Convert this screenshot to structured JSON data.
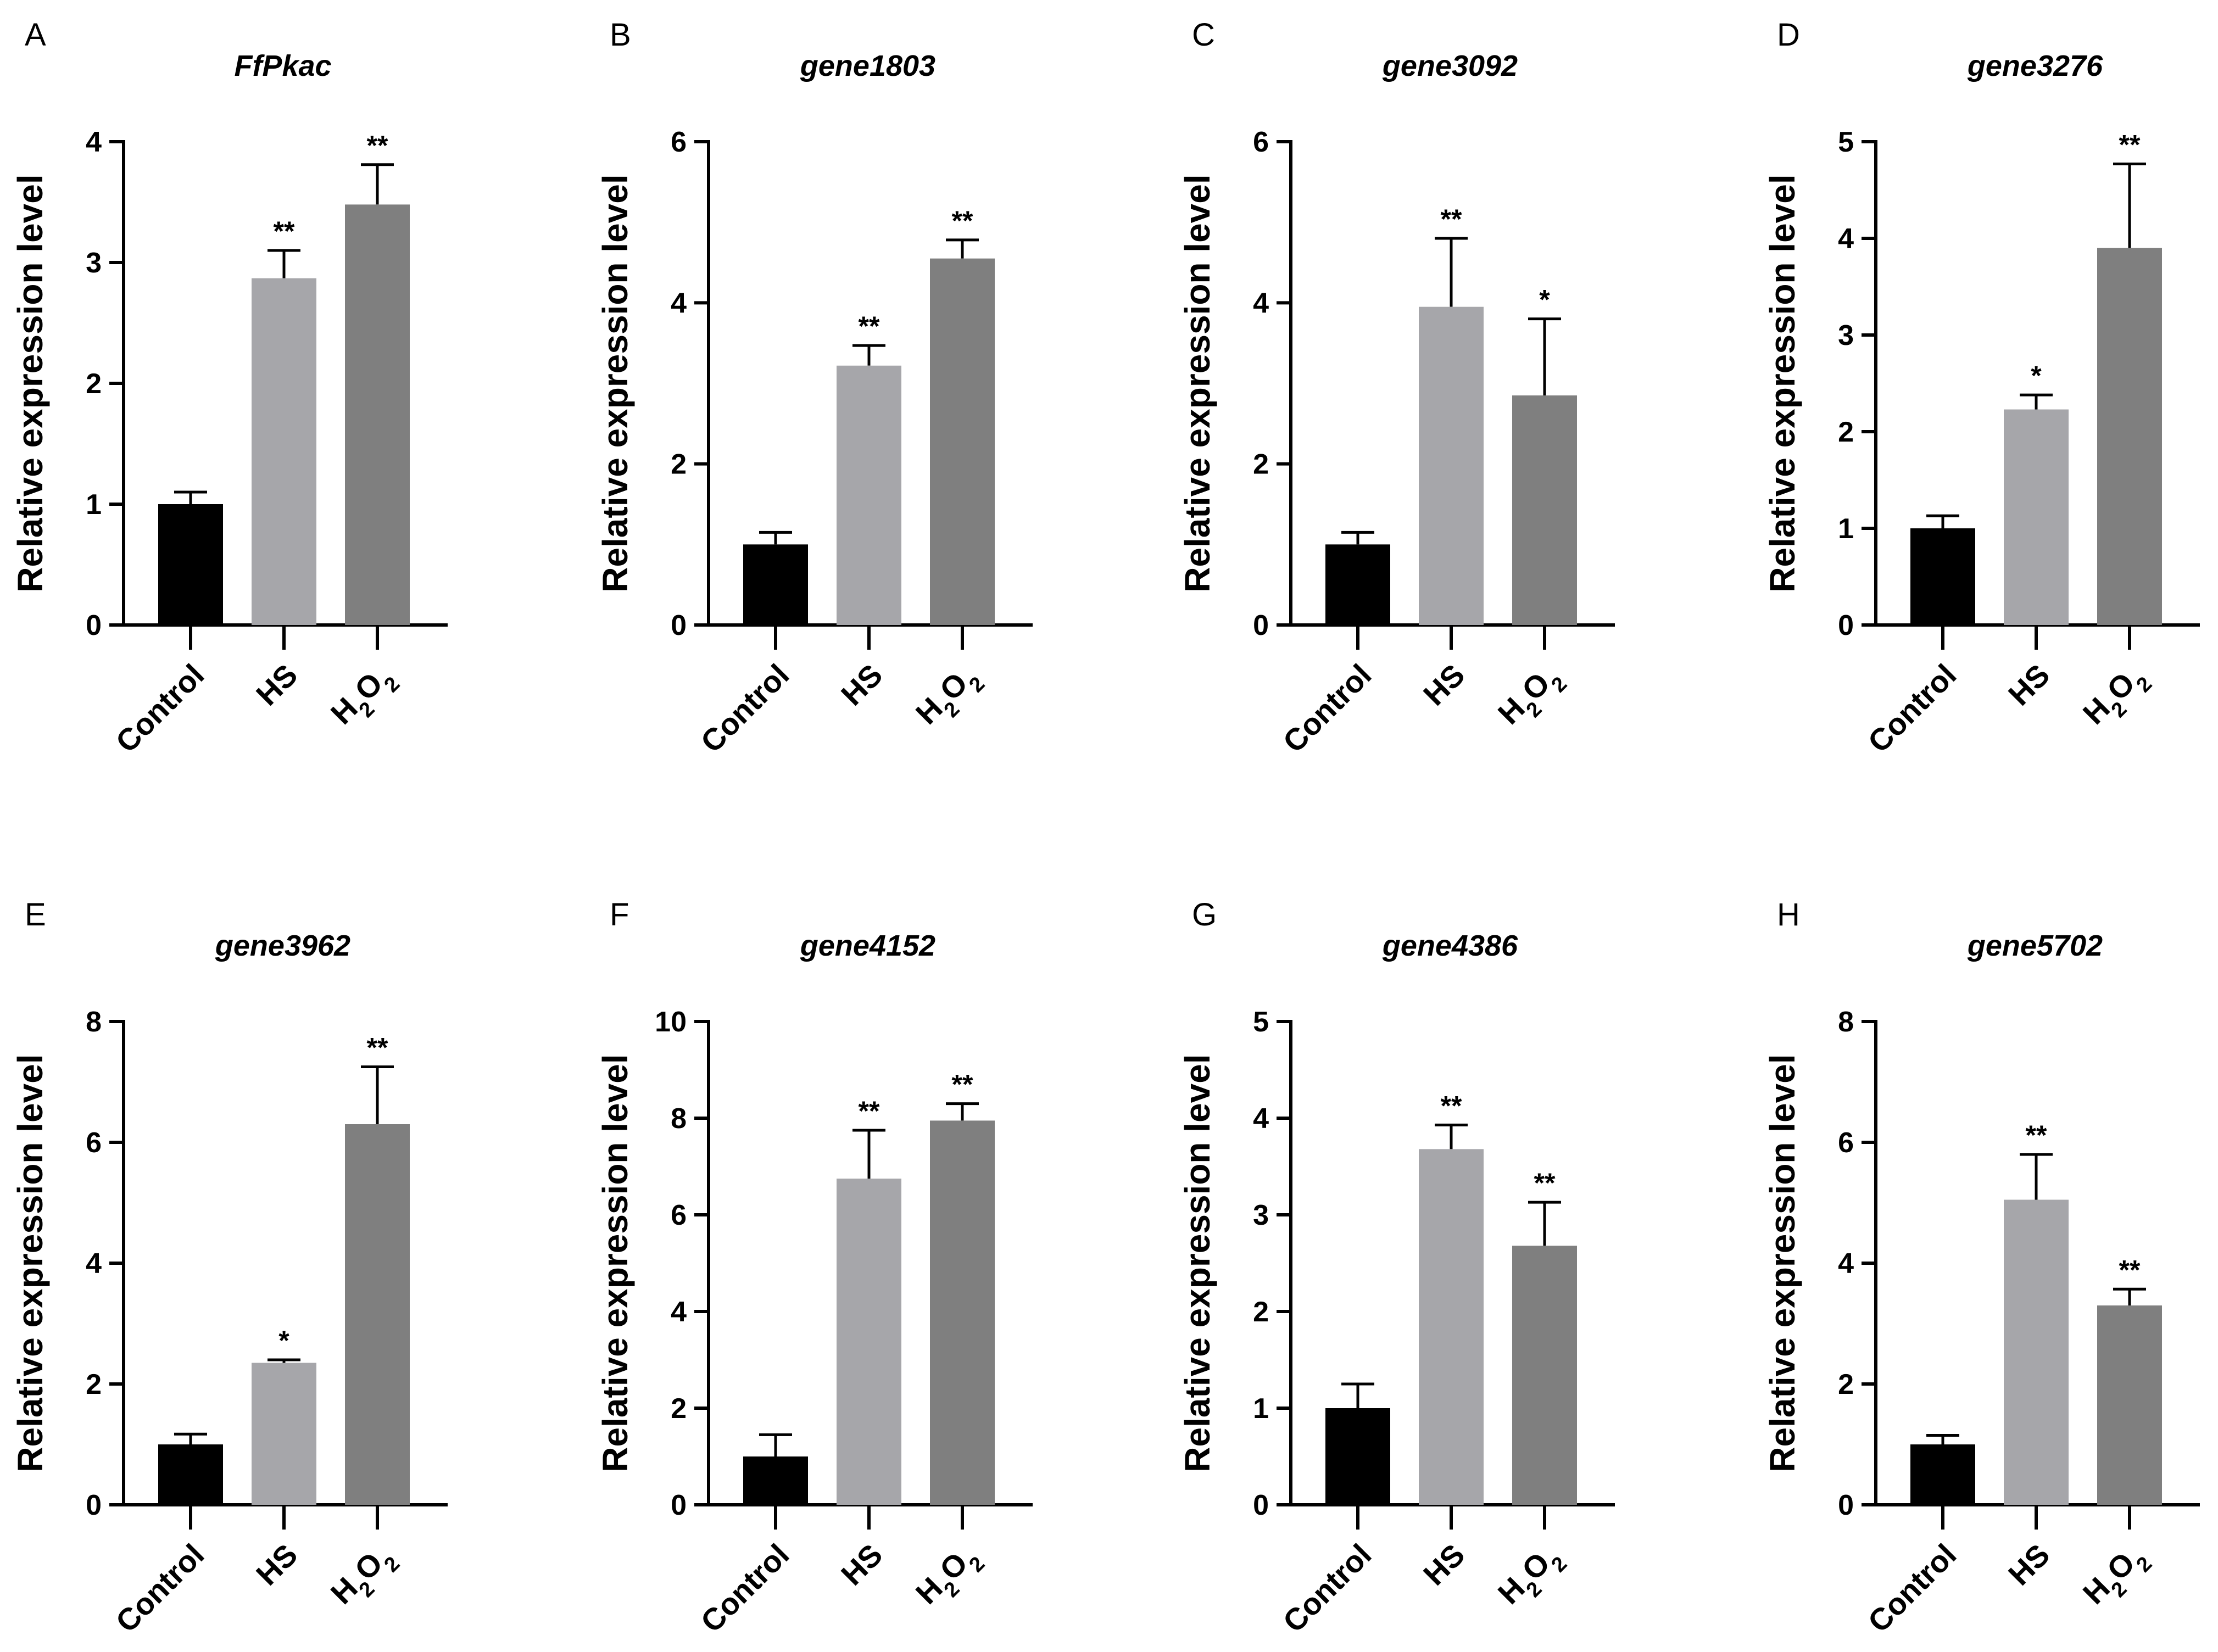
{
  "figure": {
    "categories": [
      "Control",
      "HS",
      "H2O2"
    ],
    "bar_colors": [
      "#000000",
      "#a6a6aa",
      "#7f7f7f"
    ],
    "ylabel": "Relative expression level"
  },
  "chart_data": [
    {
      "panel": "A",
      "title": "FfPkac",
      "type": "bar",
      "categories": [
        "Control",
        "HS",
        "H2O2"
      ],
      "values": [
        1.0,
        2.87,
        3.48
      ],
      "errors": [
        0.1,
        0.23,
        0.33
      ],
      "significance": [
        "",
        "**",
        "**"
      ],
      "ylabel": "Relative expression level",
      "ylim": [
        0,
        4
      ],
      "yticks": [
        0,
        1,
        2,
        3,
        4
      ]
    },
    {
      "panel": "B",
      "title": "gene1803",
      "type": "bar",
      "categories": [
        "Control",
        "HS",
        "H2O2"
      ],
      "values": [
        1.0,
        3.22,
        4.55
      ],
      "errors": [
        0.15,
        0.25,
        0.23
      ],
      "significance": [
        "",
        "**",
        "**"
      ],
      "ylabel": "Relative expression level",
      "ylim": [
        0,
        6
      ],
      "yticks": [
        0,
        2,
        4,
        6
      ]
    },
    {
      "panel": "C",
      "title": "gene3092",
      "type": "bar",
      "categories": [
        "Control",
        "HS",
        "H2O2"
      ],
      "values": [
        1.0,
        3.95,
        2.85
      ],
      "errors": [
        0.15,
        0.85,
        0.95
      ],
      "significance": [
        "",
        "**",
        "*"
      ],
      "ylabel": "Relative expression level",
      "ylim": [
        0,
        6
      ],
      "yticks": [
        0,
        2,
        4,
        6
      ]
    },
    {
      "panel": "D",
      "title": "gene3276",
      "type": "bar",
      "categories": [
        "Control",
        "HS",
        "H2O2"
      ],
      "values": [
        1.0,
        2.23,
        3.9
      ],
      "errors": [
        0.13,
        0.15,
        0.87
      ],
      "significance": [
        "",
        "*",
        "**"
      ],
      "ylabel": "Relative expression level",
      "ylim": [
        0,
        5
      ],
      "yticks": [
        0,
        1,
        2,
        3,
        4,
        5
      ]
    },
    {
      "panel": "E",
      "title": "gene3962",
      "type": "bar",
      "categories": [
        "Control",
        "HS",
        "H2O2"
      ],
      "values": [
        1.0,
        2.35,
        6.3
      ],
      "errors": [
        0.17,
        0.05,
        0.95
      ],
      "significance": [
        "",
        "*",
        "**"
      ],
      "ylabel": "Relative expression level",
      "ylim": [
        0,
        8
      ],
      "yticks": [
        0,
        2,
        4,
        6,
        8
      ]
    },
    {
      "panel": "F",
      "title": "gene4152",
      "type": "bar",
      "categories": [
        "Control",
        "HS",
        "H2O2"
      ],
      "values": [
        1.0,
        6.75,
        7.95
      ],
      "errors": [
        0.45,
        1.0,
        0.35
      ],
      "significance": [
        "",
        "**",
        "**"
      ],
      "ylabel": "Relative expression level",
      "ylim": [
        0,
        10
      ],
      "yticks": [
        0,
        2,
        4,
        6,
        8,
        10
      ]
    },
    {
      "panel": "G",
      "title": "gene4386",
      "type": "bar",
      "categories": [
        "Control",
        "HS",
        "H2O2"
      ],
      "values": [
        1.0,
        3.68,
        2.68
      ],
      "errors": [
        0.25,
        0.25,
        0.45
      ],
      "significance": [
        "",
        "**",
        "**"
      ],
      "ylabel": "Relative expression level",
      "ylim": [
        0,
        5
      ],
      "yticks": [
        0,
        1,
        2,
        3,
        4,
        5
      ]
    },
    {
      "panel": "H",
      "title": "gene5702",
      "type": "bar",
      "categories": [
        "Control",
        "HS",
        "H2O2"
      ],
      "values": [
        1.0,
        5.05,
        3.3
      ],
      "errors": [
        0.15,
        0.75,
        0.27
      ],
      "significance": [
        "",
        "**",
        "**"
      ],
      "ylabel": "Relative expression level",
      "ylim": [
        0,
        8
      ],
      "yticks": [
        0,
        2,
        4,
        6,
        8
      ]
    }
  ]
}
